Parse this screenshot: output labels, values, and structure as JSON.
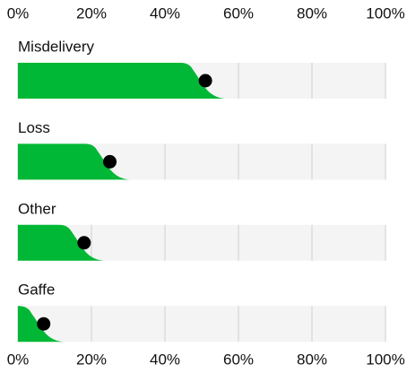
{
  "chart_data": {
    "type": "bar",
    "categories": [
      "Misdelivery",
      "Loss",
      "Other",
      "Gaffe"
    ],
    "values": [
      51,
      25,
      18,
      7
    ],
    "color": "#00b835",
    "xlim": [
      0,
      100
    ],
    "xticks": [
      {
        "value": 0,
        "label": "0%"
      },
      {
        "value": 20,
        "label": "20%"
      },
      {
        "value": 40,
        "label": "40%"
      },
      {
        "value": 60,
        "label": "60%"
      },
      {
        "value": 80,
        "label": "80%"
      },
      {
        "value": 100,
        "label": "100%"
      }
    ],
    "grid": true
  }
}
